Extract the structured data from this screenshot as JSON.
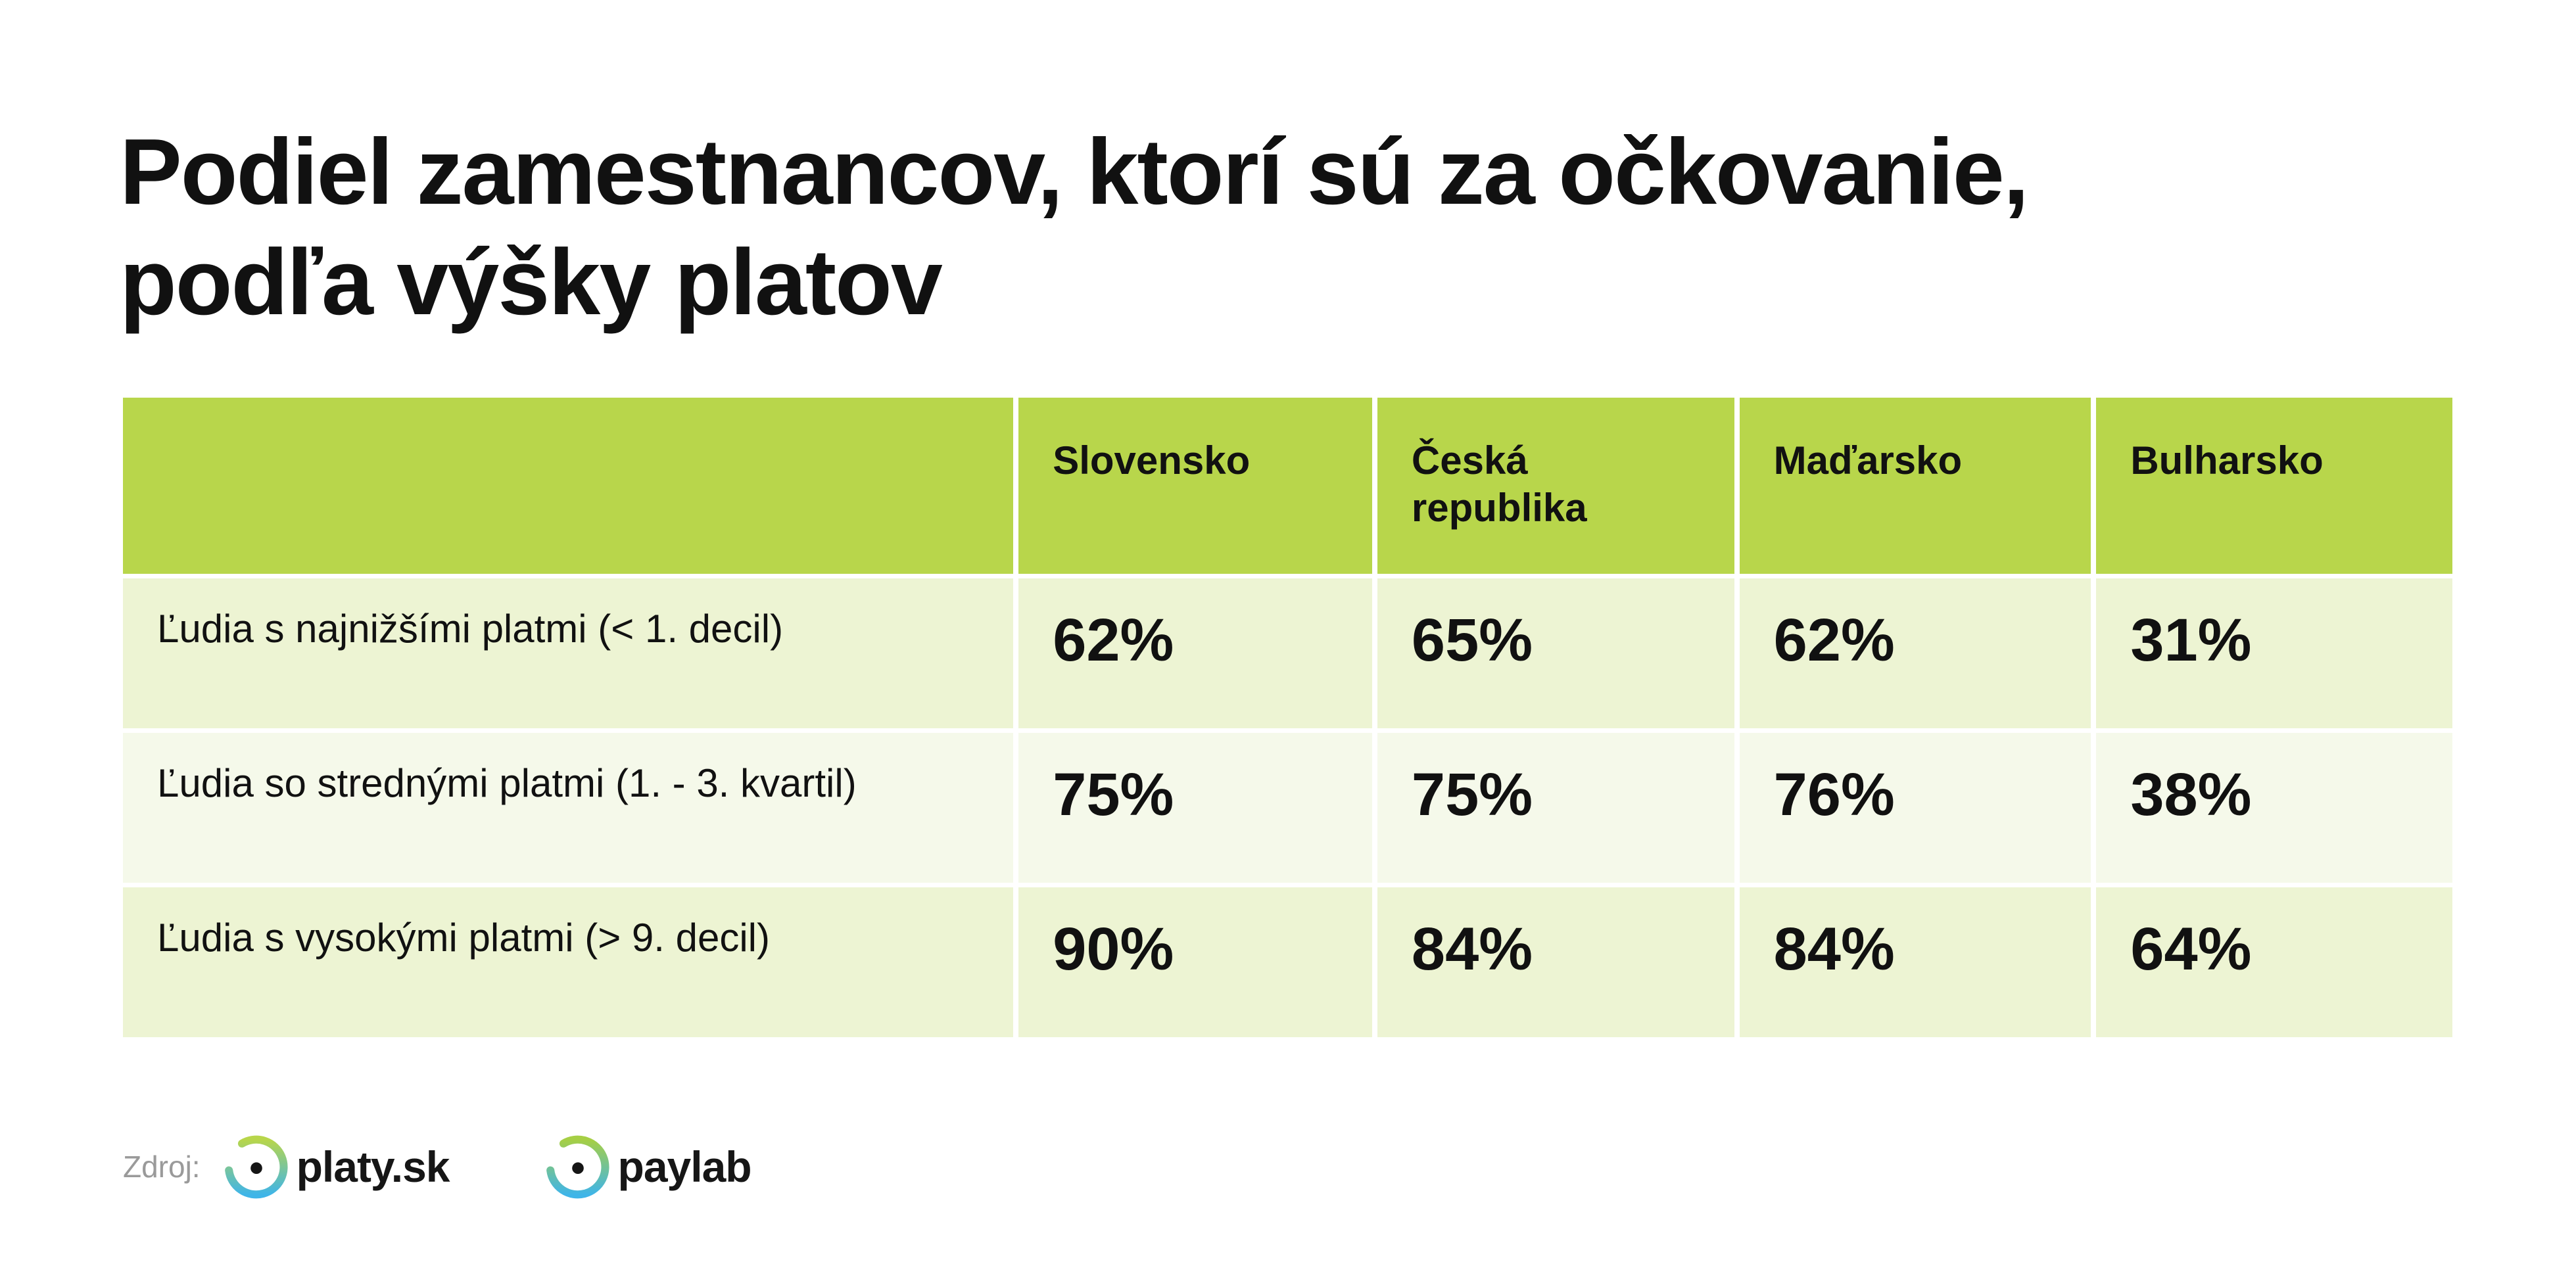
{
  "title": {
    "line1": "Podiel zamestnancov, ktorí sú za očkovanie,",
    "line2": "podľa výšky platov"
  },
  "table": {
    "headers": [
      "",
      "Slovensko",
      "Česká republika",
      "Maďarsko",
      "Bulharsko"
    ],
    "rows": [
      {
        "label": "Ľudia s najnižšími platmi  (< 1. decil)",
        "values": [
          "62%",
          "65%",
          "62%",
          "31%"
        ]
      },
      {
        "label": "Ľudia so strednými platmi (1. - 3. kvartil)",
        "values": [
          "75%",
          "75%",
          "76%",
          "38%"
        ]
      },
      {
        "label": "Ľudia s vysokými platmi  (> 9. decil)",
        "values": [
          "90%",
          "84%",
          "84%",
          "64%"
        ]
      }
    ]
  },
  "footer": {
    "source_label": "Zdroj:",
    "logos": [
      "platy.sk",
      "paylab"
    ]
  },
  "colors": {
    "header_bg": "#b8d64b",
    "row_bg_odd": "#edf4d3",
    "row_bg_even": "#f5f9ea",
    "logo_gradient": [
      "#b8d64b",
      "#3fb5e8"
    ]
  }
}
